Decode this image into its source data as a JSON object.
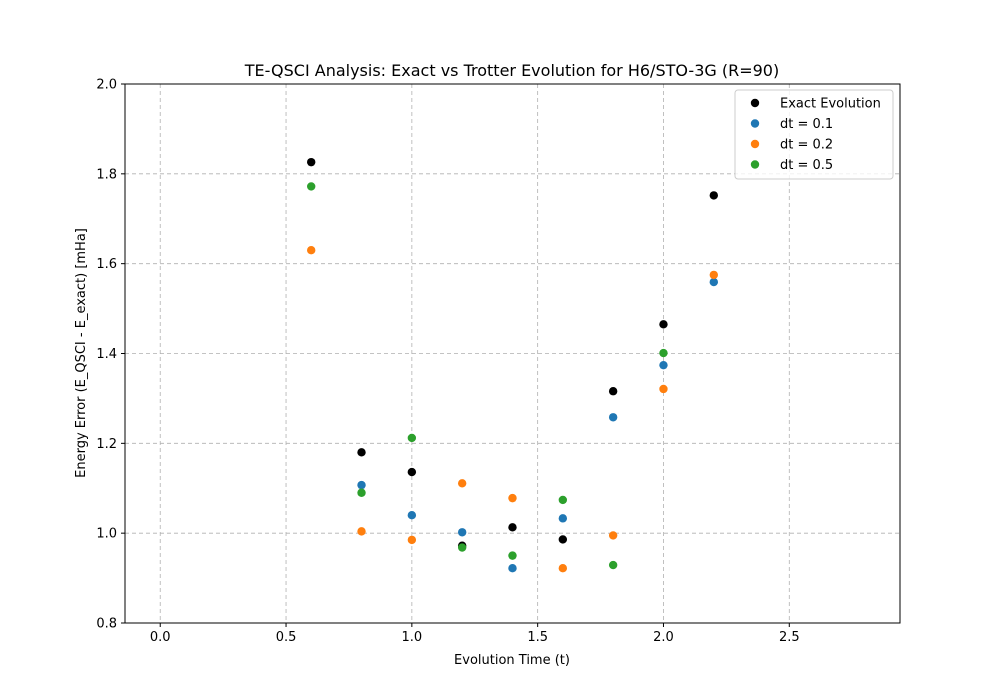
{
  "chart_data": {
    "type": "scatter",
    "title": "TE-QSCI Analysis: Exact vs Trotter Evolution for H6/STO-3G (R=90)",
    "xlabel": "Evolution Time (t)",
    "ylabel": "Energy Error (E_QSCI - E_exact) [mHa]",
    "xlim": [
      -0.14,
      2.94
    ],
    "ylim": [
      0.8,
      2.0
    ],
    "xticks": [
      "0.0",
      "0.5",
      "1.0",
      "1.5",
      "2.0",
      "2.5"
    ],
    "yticks": [
      "0.8",
      "1.0",
      "1.2",
      "1.4",
      "1.6",
      "1.8",
      "2.0"
    ],
    "grid": true,
    "legend_position": "top-right",
    "series": [
      {
        "name": "Exact Evolution",
        "color": "#000000",
        "points": [
          [
            0.6,
            1.826
          ],
          [
            0.8,
            1.18
          ],
          [
            1.0,
            1.136
          ],
          [
            1.2,
            0.972
          ],
          [
            1.4,
            1.013
          ],
          [
            1.6,
            0.986
          ],
          [
            1.8,
            1.316
          ],
          [
            2.0,
            1.465
          ],
          [
            2.2,
            1.752
          ]
        ]
      },
      {
        "name": "dt = 0.1",
        "color": "#1f77b4",
        "points": [
          [
            0.8,
            1.107
          ],
          [
            1.0,
            1.04
          ],
          [
            1.2,
            1.002
          ],
          [
            1.4,
            0.922
          ],
          [
            1.6,
            1.033
          ],
          [
            1.8,
            1.258
          ],
          [
            2.0,
            1.374
          ],
          [
            2.2,
            1.559
          ]
        ]
      },
      {
        "name": "dt = 0.2",
        "color": "#ff7f0e",
        "points": [
          [
            0.6,
            1.63
          ],
          [
            0.8,
            1.004
          ],
          [
            1.0,
            0.985
          ],
          [
            1.2,
            1.111
          ],
          [
            1.4,
            1.078
          ],
          [
            1.6,
            0.922
          ],
          [
            1.8,
            0.995
          ],
          [
            2.0,
            1.321
          ],
          [
            2.2,
            1.575
          ]
        ]
      },
      {
        "name": "dt = 0.5",
        "color": "#2ca02c",
        "points": [
          [
            0.6,
            1.772
          ],
          [
            0.8,
            1.09
          ],
          [
            1.0,
            1.212
          ],
          [
            1.2,
            0.968
          ],
          [
            1.4,
            0.95
          ],
          [
            1.6,
            1.074
          ],
          [
            1.8,
            0.929
          ],
          [
            2.0,
            1.401
          ]
        ]
      }
    ]
  }
}
